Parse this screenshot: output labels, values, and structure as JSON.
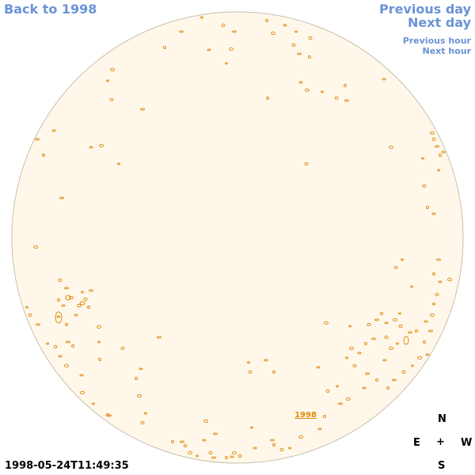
{
  "nav": {
    "back_label": "Back to 1998",
    "prev_day_label": "Previous day",
    "next_day_label": "Next day",
    "prev_hour_label": "Previous hour",
    "next_hour_label": "Next hour"
  },
  "disk": {
    "year_label": "1998",
    "fill_color": "#fff8ea",
    "edge_color": "#c9bfae",
    "feature_color": "#e08a10"
  },
  "timestamp": "1998-05-24T11:49:35",
  "compass": {
    "north": "N",
    "east": "E",
    "center": "+",
    "west": "W",
    "south": "S"
  }
}
